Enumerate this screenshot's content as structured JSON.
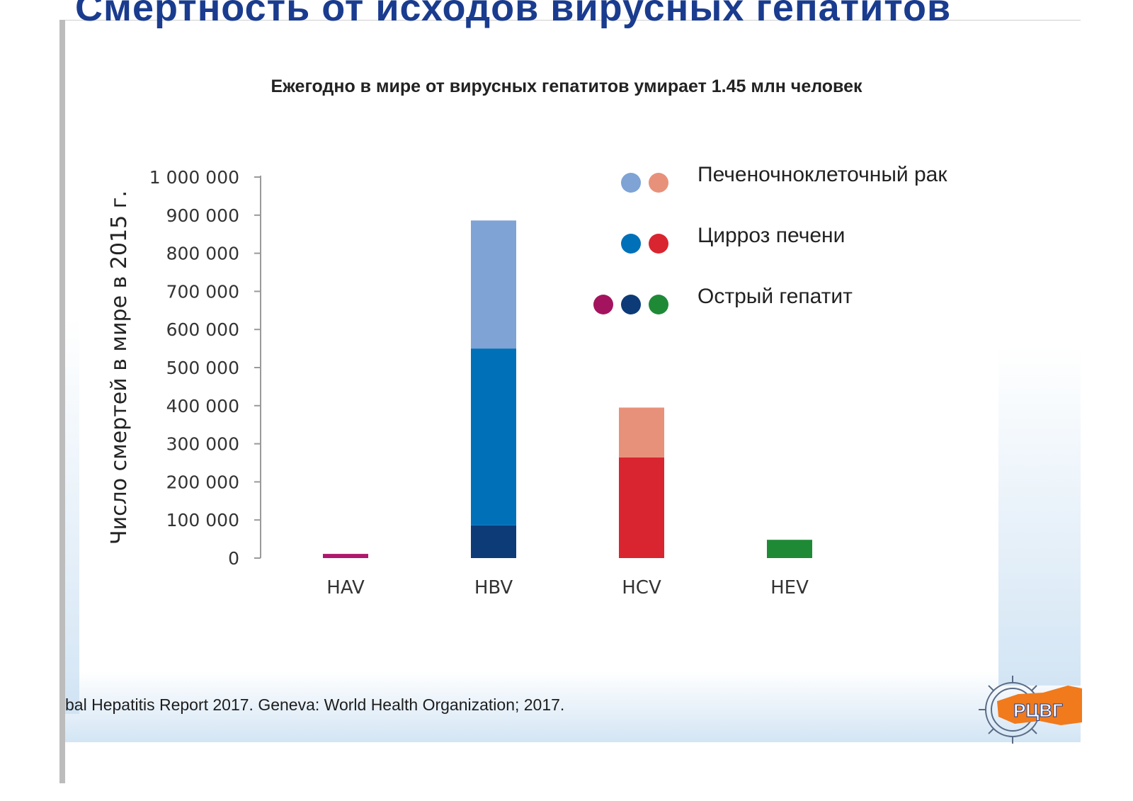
{
  "slide": {
    "title": "Смертность от исходов вирусных гепатитов",
    "subtitle": "Ежегодно в мире от вирусных гепатитов умирает 1.45 млн человек",
    "footer": "bal Hepatitis Report 2017. Geneva: World Health Organization; 2017.",
    "logo_text": "РЦВГ"
  },
  "chart_data": {
    "type": "bar",
    "stacked": true,
    "categories": [
      "HAV",
      "HBV",
      "HCV",
      "HEV"
    ],
    "ylabel": "Число смертей в мире в 2015 г.",
    "ylim": [
      0,
      1000000
    ],
    "yticks": [
      0,
      100000,
      200000,
      300000,
      400000,
      500000,
      600000,
      700000,
      800000,
      900000,
      1000000
    ],
    "ytick_labels": [
      "0",
      "100 000",
      "200 000",
      "300 000",
      "400 000",
      "500 000",
      "600 000",
      "700 000",
      "800 000",
      "900 000",
      "1 000 000"
    ],
    "series": [
      {
        "name": "Острый гепатит",
        "values": [
          11000,
          86000,
          0,
          48000
        ],
        "colors": [
          "#b0176e",
          "#0d3b78",
          "#d0232d",
          "#1f8a36"
        ]
      },
      {
        "name": "Цирроз печени",
        "values": [
          0,
          464000,
          264000,
          0
        ],
        "colors": [
          "#b0176e",
          "#0070b9",
          "#d9252f",
          "#1f8a36"
        ]
      },
      {
        "name": "Печеночноклеточный рак",
        "values": [
          0,
          336000,
          131000,
          0
        ],
        "colors": [
          "#b0176e",
          "#7ea3d4",
          "#e8917a",
          "#1f8a36"
        ]
      }
    ],
    "legend": {
      "placement": "top-right",
      "entries": [
        {
          "label": "Печеночноклеточный рак",
          "dots": [
            "#7ea3d4",
            "#e8917a"
          ]
        },
        {
          "label": "Цирроз печени",
          "dots": [
            "#0070b9",
            "#d9252f"
          ]
        },
        {
          "label": "Острый гепатит",
          "dots": [
            "#a4145e",
            "#0d3b78",
            "#1f8a36"
          ]
        }
      ]
    }
  }
}
